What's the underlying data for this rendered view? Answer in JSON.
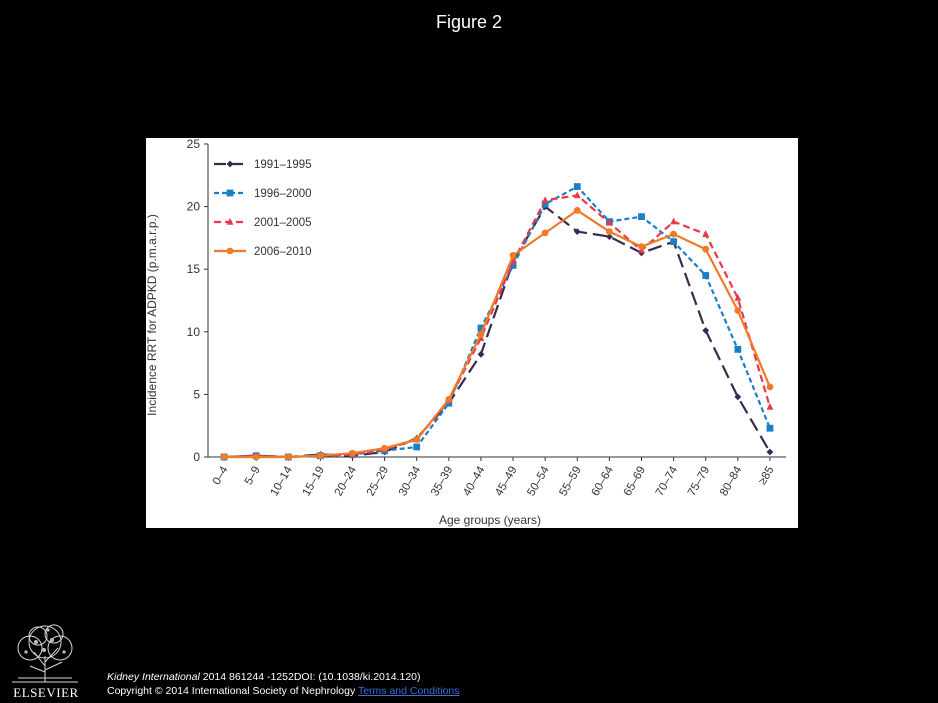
{
  "figure": {
    "title": "Figure 2"
  },
  "chart_data": {
    "type": "line",
    "title": "",
    "xlabel": "Age groups (years)",
    "ylabel": "Incidence RRT for ADPKD (p.m.a.r.p.)",
    "ylim": [
      0,
      25
    ],
    "yticks": [
      "0",
      "5",
      "10",
      "15",
      "20",
      "25"
    ],
    "grid": false,
    "legend_position": "top-left",
    "categories": [
      "0–4",
      "5–9",
      "10–14",
      "15–19",
      "20–24",
      "25–29",
      "30–34",
      "35–39",
      "40–44",
      "45–49",
      "50–54",
      "55–59",
      "60–64",
      "65–69",
      "70–74",
      "75–79",
      "80–84",
      "≥85"
    ],
    "series": [
      {
        "name": "1991–1995",
        "color": "#3b2a4f",
        "marker": "diamond",
        "dash": "14,6",
        "values": [
          0.0,
          0.1,
          0.0,
          0.2,
          0.1,
          0.4,
          1.5,
          4.3,
          8.2,
          15.6,
          20.0,
          18.0,
          17.6,
          16.3,
          17.2,
          10.1,
          4.8,
          0.4
        ]
      },
      {
        "name": "1996–2000",
        "color": "#1a7fc4",
        "marker": "square",
        "dash": "5,3",
        "values": [
          0.0,
          0.1,
          0.0,
          0.1,
          0.2,
          0.5,
          0.8,
          4.3,
          10.3,
          15.3,
          20.2,
          21.6,
          18.8,
          19.2,
          17.2,
          14.5,
          8.6,
          2.3
        ]
      },
      {
        "name": "2001–2005",
        "color": "#e8394a",
        "marker": "triangle",
        "dash": "7,4",
        "values": [
          0.0,
          0.1,
          0.0,
          0.1,
          0.2,
          0.6,
          1.4,
          4.5,
          9.5,
          15.6,
          20.5,
          20.9,
          18.7,
          16.5,
          18.8,
          17.8,
          12.7,
          4.0
        ]
      },
      {
        "name": "2006–2010",
        "color": "#f07a27",
        "marker": "circle",
        "dash": "",
        "values": [
          0.0,
          0.0,
          0.0,
          0.1,
          0.3,
          0.7,
          1.4,
          4.6,
          9.8,
          16.1,
          17.9,
          19.7,
          18.0,
          16.8,
          17.8,
          16.6,
          11.7,
          5.6
        ]
      }
    ]
  },
  "footer": {
    "publisher_logo": "ELSEVIER",
    "journal": "Kidney International",
    "citation_rest": " 2014 861244 -1252DOI: (10.1038/ki.2014.120)",
    "copyright": "Copyright © 2014 International Society of Nephrology",
    "terms_link": "Terms and Conditions"
  }
}
